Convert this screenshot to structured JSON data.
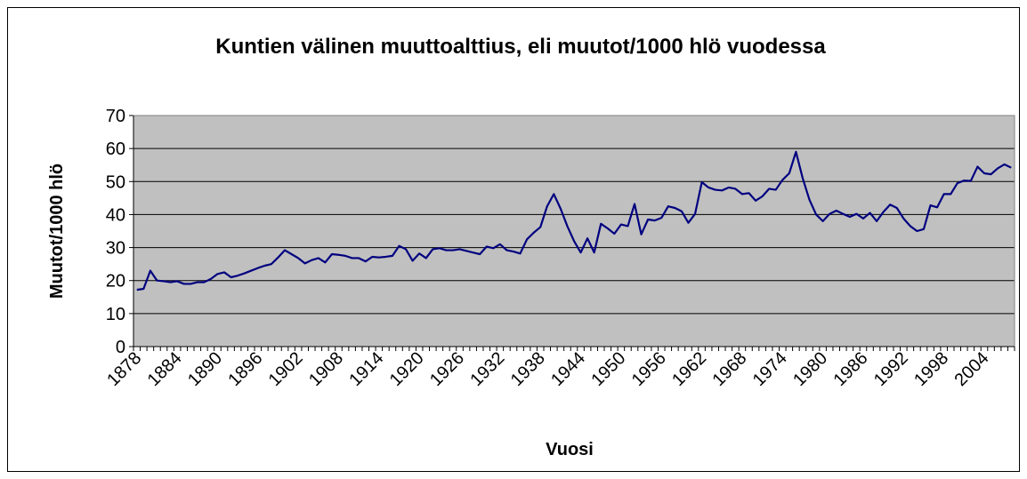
{
  "chart_data": {
    "type": "line",
    "title": "Kuntien välinen muuttoalttius, eli muutot/1000 hlö vuodessa",
    "x_label": "Vuosi",
    "y_label": "Muutot/1000 hlö",
    "categories": [
      "1878",
      null,
      null,
      null,
      null,
      null,
      "1884",
      null,
      null,
      null,
      null,
      null,
      "1890",
      null,
      null,
      null,
      null,
      null,
      "1896",
      null,
      null,
      null,
      null,
      null,
      "1902",
      null,
      null,
      null,
      null,
      null,
      "1908",
      null,
      null,
      null,
      null,
      null,
      "1914",
      null,
      null,
      null,
      null,
      null,
      "1920",
      null,
      null,
      null,
      null,
      null,
      "1926",
      null,
      null,
      null,
      null,
      null,
      "1932",
      null,
      null,
      null,
      null,
      null,
      "1938",
      null,
      null,
      null,
      null,
      null,
      "1944",
      null,
      null,
      null,
      null,
      null,
      "1950",
      null,
      null,
      null,
      null,
      null,
      "1956",
      null,
      null,
      null,
      null,
      null,
      "1962",
      null,
      null,
      null,
      null,
      null,
      "1968",
      null,
      null,
      null,
      null,
      null,
      "1974",
      null,
      null,
      null,
      null,
      null,
      "1980",
      null,
      null,
      null,
      null,
      null,
      "1986",
      null,
      null,
      null,
      null,
      null,
      "1992",
      null,
      null,
      null,
      null,
      null,
      "1998",
      null,
      null,
      null,
      null,
      null,
      "2004",
      null,
      null,
      null,
      null
    ],
    "series": [
      {
        "name": "Muutot/1000 hlö",
        "color": "#000080",
        "values": [
          17.2,
          17.5,
          23,
          20,
          19.8,
          19.5,
          19.8,
          19,
          19,
          19.5,
          19.5,
          20.5,
          22,
          22.5,
          21,
          21.5,
          22.2,
          23,
          23.8,
          24.5,
          25,
          27,
          29.2,
          28,
          26.8,
          25.2,
          26.2,
          26.8,
          25.5,
          28,
          27.8,
          27.5,
          26.8,
          26.8,
          25.8,
          27.2,
          27,
          27.2,
          27.5,
          30.5,
          29.5,
          26,
          28.2,
          26.8,
          29.5,
          29.8,
          29.2,
          29.2,
          29.5,
          29,
          28.5,
          28,
          30.3,
          29.8,
          31,
          29.2,
          28.8,
          28.2,
          32.5,
          34.5,
          36.2,
          42.5,
          46.2,
          41.8,
          36.5,
          32,
          28.5,
          32.8,
          28.5,
          37.2,
          35.8,
          34.2,
          37,
          36.5,
          43.2,
          34,
          38.5,
          38.2,
          39,
          42.5,
          42,
          41,
          37.5,
          40.2,
          49.8,
          48.2,
          47.5,
          47.3,
          48.2,
          47.8,
          46.2,
          46.5,
          44.2,
          45.5,
          47.8,
          47.5,
          50.5,
          52.5,
          59,
          51,
          44.5,
          40,
          38,
          40.2,
          41.2,
          40.2,
          39.3,
          40.2,
          38.8,
          40.5,
          38,
          40.8,
          43,
          42,
          38.8,
          36.5,
          35,
          35.6,
          42.8,
          42.2,
          46.2,
          46.2,
          49.5,
          50.3,
          50.2,
          54.5,
          52.5,
          52.2,
          54,
          55.2,
          54.2
        ]
      }
    ],
    "ylim": [
      0,
      70
    ],
    "yticks": [
      0,
      10,
      20,
      30,
      40,
      50,
      60,
      70
    ],
    "grid": true,
    "legend": false
  }
}
